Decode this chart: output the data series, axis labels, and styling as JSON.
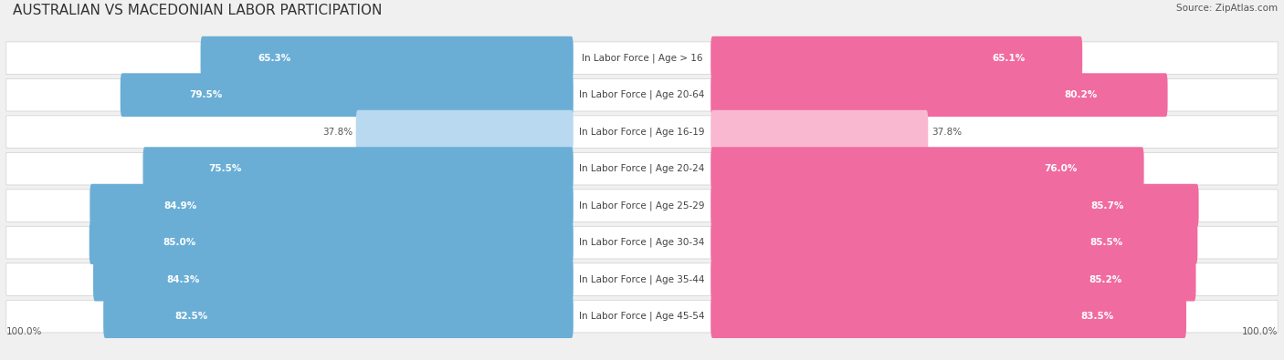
{
  "title": "AUSTRALIAN VS MACEDONIAN LABOR PARTICIPATION",
  "source": "Source: ZipAtlas.com",
  "categories": [
    "In Labor Force | Age > 16",
    "In Labor Force | Age 20-64",
    "In Labor Force | Age 16-19",
    "In Labor Force | Age 20-24",
    "In Labor Force | Age 25-29",
    "In Labor Force | Age 30-34",
    "In Labor Force | Age 35-44",
    "In Labor Force | Age 45-54"
  ],
  "australian_values": [
    65.3,
    79.5,
    37.8,
    75.5,
    84.9,
    85.0,
    84.3,
    82.5
  ],
  "macedonian_values": [
    65.1,
    80.2,
    37.8,
    76.0,
    85.7,
    85.5,
    85.2,
    83.5
  ],
  "australian_color": "#6aaed6",
  "australian_color_light": "#b8d9ef",
  "macedonian_color": "#f06ba0",
  "macedonian_color_light": "#f9b8d0",
  "background_color": "#f0f0f0",
  "max_value": 100.0,
  "title_fontsize": 11,
  "label_fontsize": 7.5,
  "value_fontsize": 7.5,
  "legend_fontsize": 8.5,
  "source_fontsize": 7.5
}
